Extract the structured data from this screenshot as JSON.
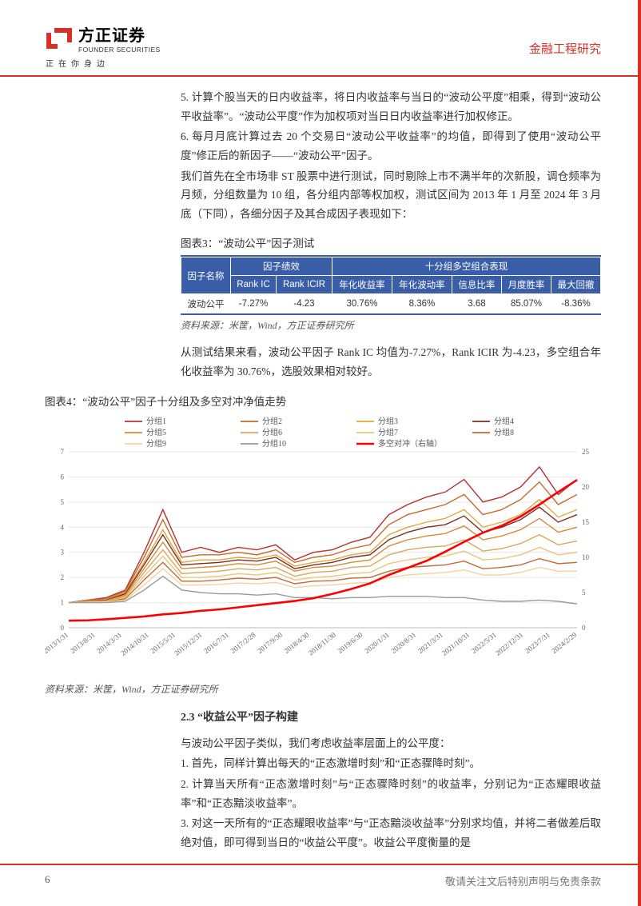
{
  "header": {
    "logo_cn": "方正证券",
    "logo_en": "FOUNDER SECURITIES",
    "logo_tagline": "正在你身边",
    "right_label": "金融工程研究"
  },
  "body": {
    "p5": "5. 计算个股当天的日内收益率，将日内收益率与当日的“波动公平度”相乘，得到“波动公平收益率”。“波动公平度”作为加权项对当日日内收益率进行加权修正。",
    "p6": "6. 每月月底计算过去 20 个交易日“波动公平收益率”的均值，即得到了使用“波动公平度”修正后的新因子——“波动公平”因子。",
    "p7": "我们首先在全市场非 ST 股票中进行测试，同时剔除上市不满半年的次新股，调仓频率为月频，分组数量为 10 组，各分组内部等权加权，测试区间为 2013 年 1 月至 2024 年 3 月底（下同），各细分因子及其合成因子表现如下：",
    "fig3_title": "图表3：“波动公平”因子测试",
    "fig3_source": "资料来源：米筐，Wind，方正证券研究所",
    "p8": "从测试结果来看，波动公平因子 Rank IC 均值为-7.27%，Rank ICIR 为-4.23，多空组合年化收益率为 30.76%，选股效果相对较好。",
    "fig4_title": "图表4：“波动公平”因子十分组及多空对冲净值走势",
    "fig4_source": "资料来源：米筐，Wind，方正证券研究所",
    "section23": "2.3 “收益公平”因子构建",
    "p9": "与波动公平因子类似，我们考虑收益率层面上的公平度：",
    "p10": "1. 首先，同样计算出每天的“正态激增时刻”和“正态骤降时刻”。",
    "p11": "2. 计算当天所有“正态激增时刻”与“正态骤降时刻”的收益率，分别记为“正态耀眼收益率”和“正态黯淡收益率”。",
    "p12": "3. 对这一天所有的“正态耀眼收益率”与“正态黯淡收益率”分别求均值，并将二者做差后取绝对值，即可得到当日的“收益公平度”。收益公平度衡量的是"
  },
  "table3": {
    "header_bg": "#3a5da8",
    "header_fg": "#ffffff",
    "h_factor": "因子名称",
    "h_perf": "因子绩效",
    "h_decile": "十分组多空组合表现",
    "sub_headers": [
      "Rank IC",
      "Rank ICIR",
      "年化收益率",
      "年化波动率",
      "信息比率",
      "月度胜率",
      "最大回撤"
    ],
    "row": {
      "name": "波动公平",
      "values": [
        "-7.27%",
        "-4.23",
        "30.76%",
        "8.36%",
        "3.68",
        "85.07%",
        "-8.36%"
      ]
    }
  },
  "chart4": {
    "type": "line",
    "left_ylim": [
      0,
      7
    ],
    "left_yticks": [
      0,
      1,
      2,
      3,
      4,
      5,
      6,
      7
    ],
    "right_ylim": [
      0,
      25
    ],
    "right_yticks": [
      0,
      5,
      10,
      15,
      20,
      25
    ],
    "x_labels": [
      "2013/1/31",
      "2013/8/31",
      "2014/3/31",
      "2014/10/31",
      "2015/5/31",
      "2015/12/31",
      "2016/7/31",
      "2017/2/28",
      "2017/9/30",
      "2018/4/30",
      "2018/11/30",
      "2019/6/30",
      "2020/1/31",
      "2020/8/31",
      "2021/3/31",
      "2021/10/31",
      "2022/5/31",
      "2022/12/31",
      "2023/7/31",
      "2024/2/29"
    ],
    "legend": [
      {
        "label": "分组1",
        "color": "#b83030"
      },
      {
        "label": "分组2",
        "color": "#c66a2a"
      },
      {
        "label": "分组3",
        "color": "#e0a83a"
      },
      {
        "label": "分组4",
        "color": "#7a2e25"
      },
      {
        "label": "分组5",
        "color": "#d68b3a"
      },
      {
        "label": "分组6",
        "color": "#dba85a"
      },
      {
        "label": "分组7",
        "color": "#e6c87b"
      },
      {
        "label": "分组8",
        "color": "#c46a3a"
      },
      {
        "label": "分组9",
        "color": "#f0d4a0"
      },
      {
        "label": "分组10",
        "color": "#9a9a9a"
      },
      {
        "label": "多空对冲（右轴）",
        "color": "#ff0000",
        "bold": true
      }
    ],
    "series": {
      "g1": [
        1,
        1.1,
        1.2,
        1.5,
        3.0,
        4.7,
        3.0,
        3.2,
        3.0,
        3.2,
        3.1,
        3.3,
        2.7,
        3.0,
        3.1,
        3.4,
        3.6,
        4.5,
        4.9,
        5.2,
        5.4,
        5.9,
        5.0,
        5.2,
        5.6,
        6.4,
        5.3,
        5.9
      ],
      "g2": [
        1,
        1.1,
        1.15,
        1.45,
        2.8,
        4.3,
        2.8,
        2.9,
        2.9,
        3.0,
        2.9,
        3.1,
        2.6,
        2.8,
        2.9,
        3.15,
        3.3,
        4.1,
        4.5,
        4.7,
        4.9,
        5.3,
        4.5,
        4.7,
        5.1,
        5.8,
        4.9,
        5.3
      ],
      "g3": [
        1,
        1.08,
        1.12,
        1.4,
        2.6,
        3.9,
        2.6,
        2.7,
        2.7,
        2.8,
        2.75,
        2.9,
        2.45,
        2.6,
        2.7,
        2.9,
        3.0,
        3.7,
        4.0,
        4.2,
        4.35,
        4.7,
        4.0,
        4.2,
        4.5,
        5.1,
        4.4,
        4.7
      ],
      "g4": [
        1,
        1.07,
        1.1,
        1.35,
        2.5,
        3.7,
        2.5,
        2.55,
        2.6,
        2.7,
        2.65,
        2.8,
        2.35,
        2.5,
        2.6,
        2.8,
        2.9,
        3.5,
        3.8,
        4.0,
        4.1,
        4.45,
        3.8,
        4.0,
        4.3,
        4.8,
        4.2,
        4.5
      ],
      "g5": [
        1,
        1.06,
        1.08,
        1.3,
        2.35,
        3.4,
        2.35,
        2.4,
        2.45,
        2.55,
        2.5,
        2.65,
        2.25,
        2.4,
        2.45,
        2.6,
        2.7,
        3.25,
        3.5,
        3.65,
        3.75,
        4.05,
        3.5,
        3.65,
        3.9,
        4.35,
        3.8,
        4.0
      ],
      "g6": [
        1,
        1.05,
        1.06,
        1.25,
        2.2,
        3.1,
        2.15,
        2.2,
        2.25,
        2.35,
        2.3,
        2.4,
        2.05,
        2.2,
        2.25,
        2.4,
        2.45,
        2.9,
        3.1,
        3.2,
        3.25,
        3.5,
        3.05,
        3.15,
        3.35,
        3.7,
        3.3,
        3.45
      ],
      "g7": [
        1,
        1.04,
        1.05,
        1.2,
        2.05,
        2.85,
        2.0,
        2.0,
        2.05,
        2.15,
        2.1,
        2.2,
        1.9,
        2.0,
        2.05,
        2.15,
        2.2,
        2.55,
        2.7,
        2.8,
        2.85,
        3.05,
        2.7,
        2.75,
        2.9,
        3.2,
        2.9,
        3.0
      ],
      "g8": [
        1,
        1.03,
        1.04,
        1.15,
        1.9,
        2.6,
        1.85,
        1.85,
        1.9,
        1.97,
        1.93,
        2.0,
        1.75,
        1.85,
        1.87,
        1.97,
        2.0,
        2.25,
        2.4,
        2.45,
        2.5,
        2.65,
        2.35,
        2.4,
        2.5,
        2.75,
        2.55,
        2.6
      ],
      "g9": [
        1,
        1.02,
        1.03,
        1.1,
        1.7,
        2.35,
        1.7,
        1.7,
        1.72,
        1.78,
        1.75,
        1.8,
        1.6,
        1.67,
        1.7,
        1.77,
        1.8,
        2.0,
        2.1,
        2.15,
        2.2,
        2.3,
        2.1,
        2.1,
        2.2,
        2.4,
        2.25,
        2.25
      ],
      "g10": [
        1,
        1.0,
        1.0,
        1.05,
        1.5,
        2.05,
        1.5,
        1.4,
        1.35,
        1.35,
        1.3,
        1.35,
        1.2,
        1.2,
        1.15,
        1.2,
        1.2,
        1.25,
        1.25,
        1.25,
        1.2,
        1.2,
        1.1,
        1.05,
        1.05,
        1.1,
        1.05,
        0.95
      ],
      "hedge": [
        1,
        1.05,
        1.2,
        1.4,
        1.6,
        1.9,
        2.1,
        2.4,
        2.6,
        2.9,
        3.2,
        3.5,
        3.8,
        4.2,
        4.8,
        5.5,
        6.3,
        7.5,
        8.5,
        9.5,
        10.8,
        12.2,
        13.5,
        14.5,
        15.8,
        17.5,
        19.3,
        21.0
      ]
    },
    "n_points": 28,
    "grid_color": "#e6e6e6",
    "axis_color": "#bbbbbb",
    "tick_fontsize": 9,
    "x_rotation": -38,
    "background": "#ffffff",
    "hedge_linewidth": 2.6,
    "series_linewidth": 1.4
  },
  "footer": {
    "page": "6",
    "disclaimer": "敬请关注文后特别声明与免责条款"
  }
}
